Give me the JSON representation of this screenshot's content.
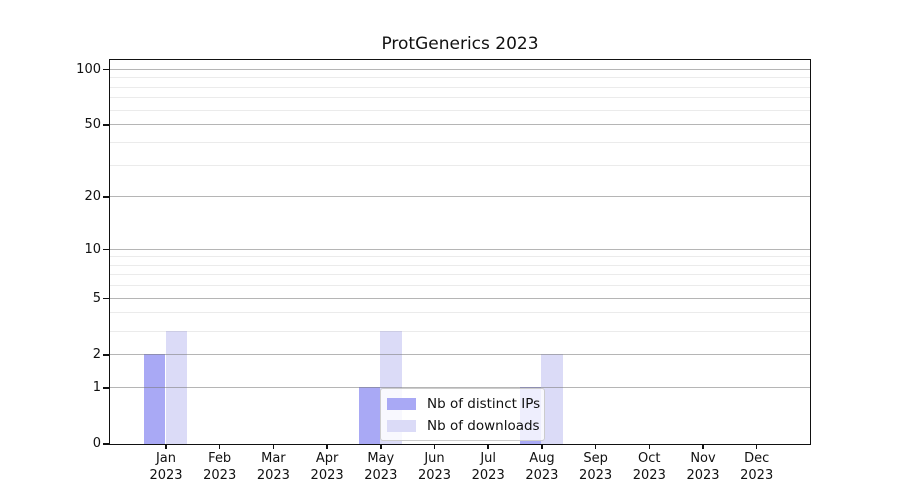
{
  "chart_data": {
    "type": "bar",
    "title": "ProtGenerics 2023",
    "categories": [
      "Jan\n2023",
      "Feb\n2023",
      "Mar\n2023",
      "Apr\n2023",
      "May\n2023",
      "Jun\n2023",
      "Jul\n2023",
      "Aug\n2023",
      "Sep\n2023",
      "Oct\n2023",
      "Nov\n2023",
      "Dec\n2023"
    ],
    "series": [
      {
        "name": "Nb of distinct IPs",
        "color": "#a9a9f5",
        "values": [
          2,
          0,
          0,
          0,
          1,
          0,
          0,
          1,
          0,
          0,
          0,
          0
        ]
      },
      {
        "name": "Nb of downloads",
        "color": "#dbdbf7",
        "values": [
          3,
          0,
          0,
          0,
          3,
          0,
          0,
          2,
          0,
          0,
          0,
          0
        ]
      }
    ],
    "xlabel": "",
    "ylabel": "",
    "yscale": "log1p",
    "y_major_ticks": [
      0,
      1,
      2,
      5,
      10,
      20,
      50,
      100
    ],
    "y_minor_gridlines": [
      3,
      4,
      6,
      7,
      8,
      9,
      30,
      40,
      60,
      70,
      80,
      90
    ],
    "ylim": [
      0,
      113
    ],
    "grid": true,
    "legend": {
      "position": "inside-lower-center",
      "entries": [
        "Nb of distinct IPs",
        "Nb of downloads"
      ]
    },
    "colors": {
      "background": "#ffffff",
      "spine": "#111111",
      "major_grid": "#bdbdbd",
      "minor_grid": "#ebebeb",
      "text": "#111111"
    }
  }
}
